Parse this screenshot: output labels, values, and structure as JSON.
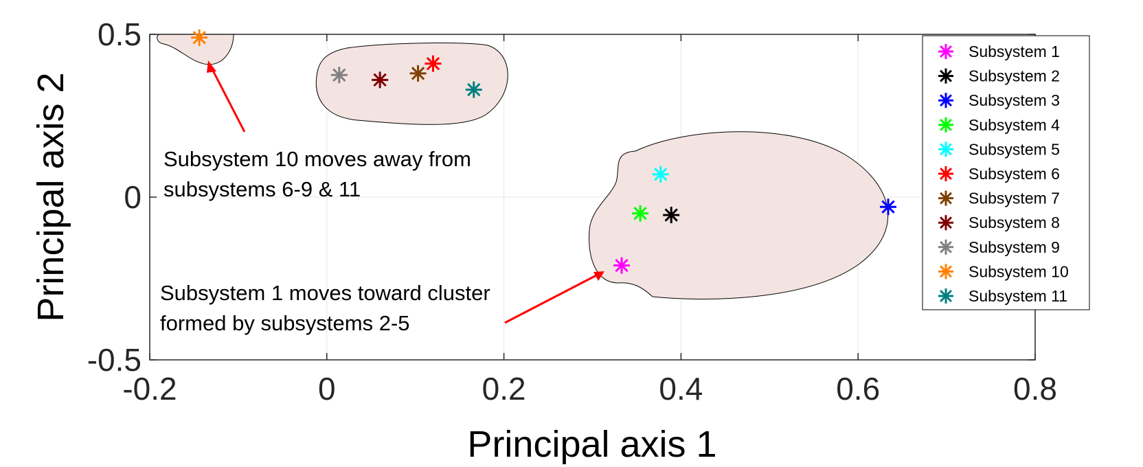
{
  "chart_data": {
    "type": "scatter",
    "title": "",
    "xlabel": "Principal axis 1",
    "ylabel": "Principal axis 2",
    "xlim": [
      -0.2,
      0.8
    ],
    "ylim": [
      -0.5,
      0.5
    ],
    "xticks": [
      -0.2,
      0,
      0.2,
      0.4,
      0.6,
      0.8
    ],
    "xtick_labels": [
      "-0.2",
      "0",
      "0.2",
      "0.4",
      "0.6",
      "0.8"
    ],
    "yticks": [
      -0.5,
      0,
      0.5
    ],
    "ytick_labels": [
      "-0.5",
      "0",
      "0.5"
    ],
    "grid": true,
    "legend_position": "top-right",
    "marker": "asterisk",
    "series": [
      {
        "name": "Subsystem 1",
        "color": "#ff00ff",
        "x": 0.333,
        "y": -0.21
      },
      {
        "name": "Subsystem 2",
        "color": "#000000",
        "x": 0.389,
        "y": -0.055
      },
      {
        "name": "Subsystem 3",
        "color": "#0000ff",
        "x": 0.634,
        "y": -0.03
      },
      {
        "name": "Subsystem 4",
        "color": "#00ff00",
        "x": 0.354,
        "y": -0.05
      },
      {
        "name": "Subsystem 5",
        "color": "#00ffff",
        "x": 0.377,
        "y": 0.07
      },
      {
        "name": "Subsystem 6",
        "color": "#ff0000",
        "x": 0.12,
        "y": 0.41
      },
      {
        "name": "Subsystem 7",
        "color": "#7f3f00",
        "x": 0.103,
        "y": 0.38
      },
      {
        "name": "Subsystem 8",
        "color": "#7f0000",
        "x": 0.06,
        "y": 0.36
      },
      {
        "name": "Subsystem 9",
        "color": "#808080",
        "x": 0.014,
        "y": 0.375
      },
      {
        "name": "Subsystem 10",
        "color": "#ff8000",
        "x": -0.144,
        "y": 0.49
      },
      {
        "name": "Subsystem 11",
        "color": "#007f7f",
        "x": 0.166,
        "y": 0.33
      }
    ],
    "annotations": [
      {
        "lines": [
          "Subsystem 10 moves away from",
          "subsystems 6-9 & 11"
        ],
        "arrow_to": [
          -0.135,
          0.42
        ]
      },
      {
        "lines": [
          "Subsystem 1 moves toward cluster",
          "formed by subsystems 2-5"
        ],
        "arrow_to": [
          0.32,
          -0.23
        ]
      }
    ],
    "cluster_fill": "#f3e4e2"
  }
}
